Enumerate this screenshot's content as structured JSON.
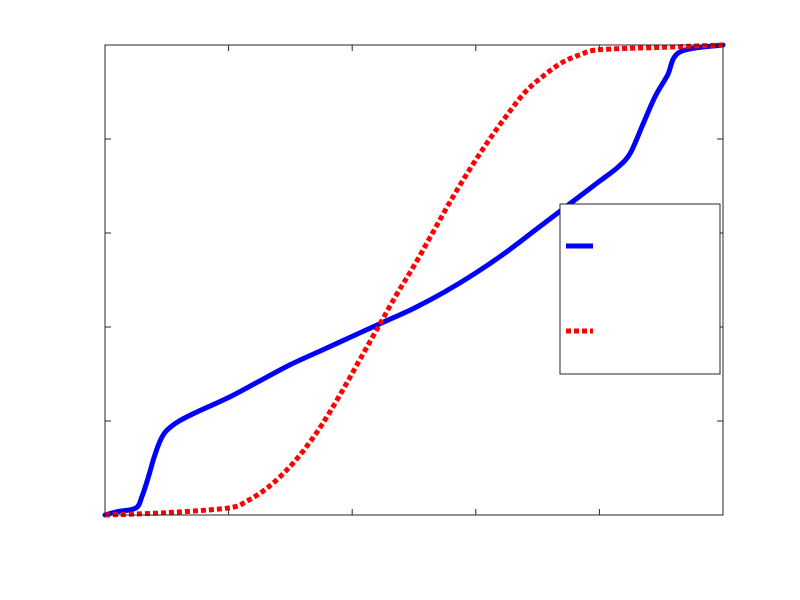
{
  "chart_data": {
    "type": "line",
    "title": "",
    "xlabel": "",
    "ylabel": "",
    "xlim": [
      0,
      1
    ],
    "ylim": [
      0,
      1
    ],
    "grid": false,
    "legend_position": "center-right",
    "xticks": [
      0,
      0.2,
      0.4,
      0.6,
      0.8,
      1.0
    ],
    "yticks": [
      0,
      0.2,
      0.4,
      0.6,
      0.8,
      1.0
    ],
    "series": [
      {
        "color": "#0000ff",
        "dash": "solid",
        "x": [
          0.0,
          0.02,
          0.05,
          0.06,
          0.07,
          0.08,
          0.09,
          0.1,
          0.12,
          0.15,
          0.2,
          0.25,
          0.3,
          0.35,
          0.4,
          0.45,
          0.5,
          0.55,
          0.6,
          0.65,
          0.7,
          0.75,
          0.8,
          0.83,
          0.85,
          0.87,
          0.89,
          0.91,
          0.93,
          1.0
        ],
        "y": [
          0.0,
          0.007,
          0.015,
          0.04,
          0.08,
          0.125,
          0.16,
          0.18,
          0.2,
          0.22,
          0.25,
          0.285,
          0.32,
          0.35,
          0.38,
          0.41,
          0.44,
          0.475,
          0.515,
          0.56,
          0.61,
          0.66,
          0.71,
          0.74,
          0.77,
          0.83,
          0.89,
          0.935,
          0.985,
          1.0
        ]
      },
      {
        "color": "#ff0000",
        "dash": "dotted",
        "x": [
          0.0,
          0.1,
          0.2,
          0.23,
          0.26,
          0.29,
          0.32,
          0.35,
          0.38,
          0.41,
          0.44,
          0.47,
          0.5,
          0.53,
          0.56,
          0.59,
          0.62,
          0.65,
          0.68,
          0.71,
          0.74,
          0.77,
          0.8,
          0.9,
          1.0
        ],
        "y": [
          0.0,
          0.005,
          0.015,
          0.03,
          0.055,
          0.09,
          0.135,
          0.19,
          0.255,
          0.325,
          0.395,
          0.465,
          0.53,
          0.6,
          0.67,
          0.735,
          0.795,
          0.85,
          0.9,
          0.935,
          0.963,
          0.98,
          0.99,
          0.995,
          1.0
        ]
      }
    ]
  }
}
